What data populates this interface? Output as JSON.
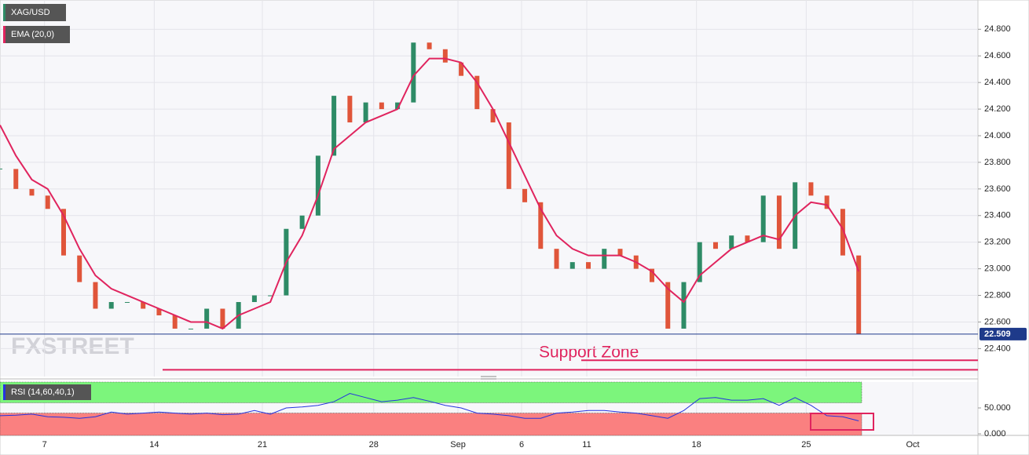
{
  "chart_data": [
    {
      "type": "candlestick",
      "watermark": "FXSTREET",
      "annotation": "Support Zone",
      "x": [
        0,
        1,
        2,
        3,
        4,
        5,
        6,
        7,
        8,
        9,
        10,
        11,
        12,
        13,
        14,
        15,
        16,
        17,
        18,
        19,
        20,
        21,
        22,
        23,
        24,
        25,
        26,
        27,
        28,
        29,
        30,
        31,
        32,
        33,
        34,
        35,
        36,
        37,
        38,
        39,
        40,
        41,
        42,
        43,
        44,
        45,
        46,
        47,
        48,
        49,
        50,
        51,
        52,
        53,
        54
      ],
      "xlim": [
        0,
        61.5
      ],
      "xticks": [
        {
          "value": 2.8,
          "label": "7"
        },
        {
          "value": 9.7,
          "label": "14"
        },
        {
          "value": 16.5,
          "label": "21"
        },
        {
          "value": 23.5,
          "label": "28"
        },
        {
          "value": 28.8,
          "label": "Sep"
        },
        {
          "value": 32.8,
          "label": "6"
        },
        {
          "value": 36.9,
          "label": "11"
        },
        {
          "value": 43.8,
          "label": "18"
        },
        {
          "value": 50.7,
          "label": "25"
        },
        {
          "value": 57.4,
          "label": "Oct"
        }
      ],
      "ylim": [
        22.19,
        25.02
      ],
      "yticks": [
        {
          "value": 22.4,
          "label": "22.400"
        },
        {
          "value": 22.6,
          "label": "22.600"
        },
        {
          "value": 22.8,
          "label": "22.800"
        },
        {
          "value": 23.0,
          "label": "23.000"
        },
        {
          "value": 23.2,
          "label": "23.200"
        },
        {
          "value": 23.4,
          "label": "23.400"
        },
        {
          "value": 23.6,
          "label": "23.600"
        },
        {
          "value": 23.8,
          "label": "23.800"
        },
        {
          "value": 24.0,
          "label": "24.000"
        },
        {
          "value": 24.2,
          "label": "24.200"
        },
        {
          "value": 24.4,
          "label": "24.400"
        },
        {
          "value": 24.6,
          "label": "24.600"
        },
        {
          "value": 24.8,
          "label": "24.800"
        }
      ],
      "grid": true,
      "up_color": "#2e8b66",
      "down_color": "#e0553a",
      "last_price": 22.509,
      "support_levels": [
        22.312,
        22.241
      ],
      "support_color": "#e0245e",
      "series": [
        {
          "name": "XAG/USD",
          "color": "#2e8b66",
          "values": [
            23.75,
            23.6,
            23.55,
            23.45,
            23.1,
            22.9,
            22.7,
            22.75,
            22.75,
            22.7,
            22.65,
            22.55,
            22.55,
            22.7,
            22.55,
            22.75,
            22.8,
            22.8,
            23.3,
            23.4,
            23.85,
            24.3,
            24.1,
            24.25,
            24.2,
            24.25,
            24.7,
            24.65,
            24.55,
            24.45,
            24.2,
            24.1,
            23.6,
            23.5,
            23.15,
            23.0,
            23.05,
            23.0,
            23.15,
            23.1,
            23.0,
            22.9,
            22.55,
            22.9,
            23.2,
            23.15,
            23.25,
            23.2,
            23.55,
            23.15,
            23.65,
            23.55,
            23.45,
            23.1,
            22.509
          ]
        },
        {
          "name": "EMA (20,0)",
          "color": "#e0245e",
          "values": [
            24.08,
            23.85,
            23.67,
            23.6,
            23.4,
            23.15,
            22.95,
            22.85,
            22.8,
            22.75,
            22.7,
            22.65,
            22.6,
            22.6,
            22.55,
            22.65,
            22.7,
            22.75,
            23.05,
            23.25,
            23.55,
            23.9,
            24.0,
            24.1,
            24.15,
            24.2,
            24.45,
            24.58,
            24.58,
            24.55,
            24.4,
            24.2,
            23.95,
            23.7,
            23.45,
            23.25,
            23.15,
            23.1,
            23.1,
            23.1,
            23.05,
            22.98,
            22.85,
            22.75,
            22.95,
            23.05,
            23.15,
            23.2,
            23.25,
            23.22,
            23.4,
            23.5,
            23.48,
            23.3,
            22.98
          ]
        }
      ]
    },
    {
      "type": "line",
      "ylim": [
        -3,
        100
      ],
      "yticks": [
        {
          "value": 50,
          "label": "50.000"
        },
        {
          "value": 0,
          "label": "0.000"
        }
      ],
      "upper": 60,
      "lower": 40,
      "upper_color": "#7cf57c",
      "lower_color": "#fa8080",
      "series": [
        {
          "name": "RSI (14,60,40,1)",
          "color": "#2433e0",
          "values": [
            35,
            36,
            38,
            33,
            32,
            30,
            33,
            42,
            38,
            40,
            42,
            40,
            38,
            40,
            37,
            38,
            45,
            38,
            50,
            52,
            55,
            62,
            78,
            70,
            62,
            65,
            70,
            63,
            55,
            50,
            40,
            38,
            35,
            30,
            30,
            40,
            42,
            45,
            45,
            42,
            40,
            35,
            30,
            45,
            68,
            70,
            65,
            65,
            68,
            55,
            70,
            55,
            35,
            33,
            25
          ]
        }
      ]
    }
  ]
}
